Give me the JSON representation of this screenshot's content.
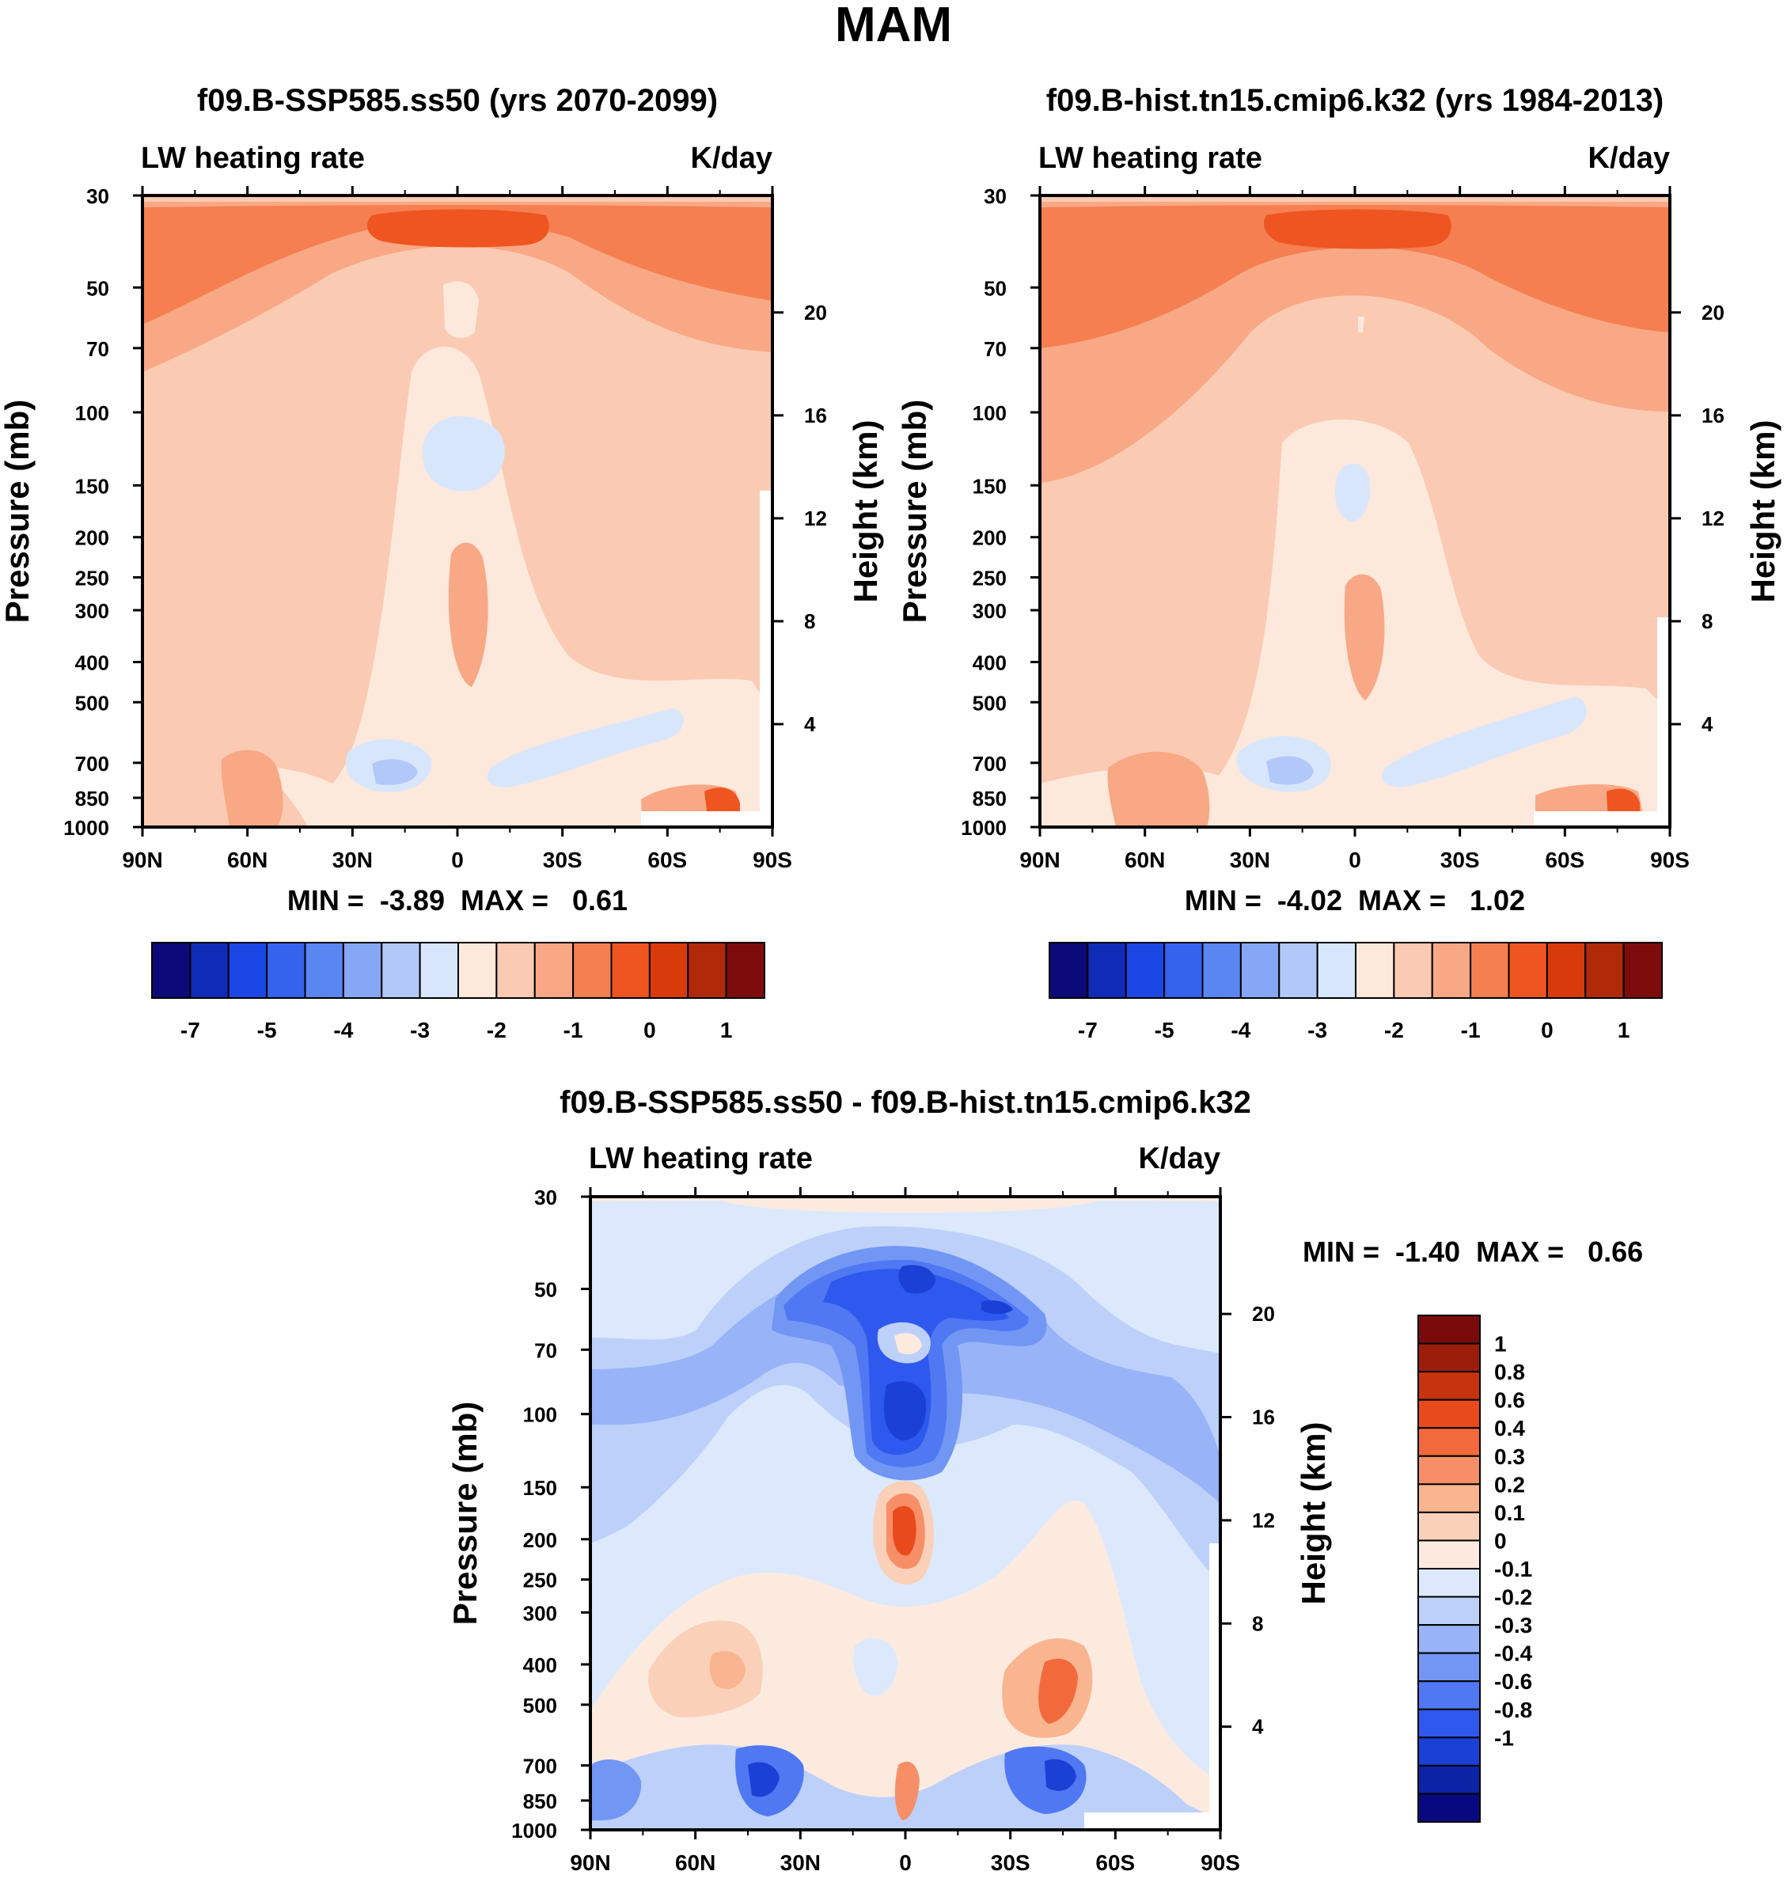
{
  "page": {
    "title": "MAM"
  },
  "colors": {
    "palette15": [
      "#0b0a78",
      "#0f2cb8",
      "#1a47e6",
      "#3563ee",
      "#5a86f2",
      "#86a7f5",
      "#b2c8f8",
      "#d8e6fb",
      "#fde8dc",
      "#fbcab2",
      "#f8a884",
      "#f57f51",
      "#ef5521",
      "#d93a0c",
      "#b02a0a",
      "#7f0c0c"
    ],
    "palette17": [
      "#080880",
      "#0d23a6",
      "#1a40d6",
      "#2f58ee",
      "#4f78f2",
      "#7296f4",
      "#98b3f7",
      "#bcd0fa",
      "#dce9fc",
      "#fdeadf",
      "#fbd0b8",
      "#f9b490",
      "#f68f68",
      "#f26a3c",
      "#e94a1c",
      "#c6330d",
      "#9b1d0a",
      "#7a0b0b"
    ]
  },
  "chart_data": [
    {
      "type": "contour",
      "title": "f09.B-SSP585.ss50 (yrs 2070-2099)",
      "variable": "LW heating rate",
      "units": "K/day",
      "ylabel": "Pressure (mb)",
      "ylabel_right": "Height (km)",
      "x_ticks": [
        "90N",
        "60N",
        "30N",
        "0",
        "30S",
        "60S",
        "90S"
      ],
      "pressure_ticks": [
        30,
        50,
        70,
        100,
        150,
        200,
        250,
        300,
        400,
        500,
        700,
        850,
        1000
      ],
      "pressure_ticks_text": [
        "30",
        "50",
        "70",
        "100",
        "150",
        "200",
        "250",
        "300",
        "400",
        "500",
        "700",
        "850",
        "1000"
      ],
      "height_ticks": [
        20,
        16,
        12,
        8,
        4
      ],
      "height_ticks_text": [
        "20",
        "16",
        "12",
        "8",
        "4"
      ],
      "ylim": [
        30,
        1000
      ],
      "stats": "MIN =  -3.89  MAX =   0.61",
      "colorbar_labels": [
        "-7",
        "-5",
        "-4",
        "-3",
        "-2",
        "-1",
        "0",
        "1"
      ]
    },
    {
      "type": "contour",
      "title": "f09.B-hist.tn15.cmip6.k32 (yrs 1984-2013)",
      "variable": "LW heating rate",
      "units": "K/day",
      "ylabel": "Pressure (mb)",
      "ylabel_right": "Height (km)",
      "x_ticks": [
        "90N",
        "60N",
        "30N",
        "0",
        "30S",
        "60S",
        "90S"
      ],
      "pressure_ticks": [
        30,
        50,
        70,
        100,
        150,
        200,
        250,
        300,
        400,
        500,
        700,
        850,
        1000
      ],
      "pressure_ticks_text": [
        "30",
        "50",
        "70",
        "100",
        "150",
        "200",
        "250",
        "300",
        "400",
        "500",
        "700",
        "850",
        "1000"
      ],
      "height_ticks": [
        20,
        16,
        12,
        8,
        4
      ],
      "height_ticks_text": [
        "20",
        "16",
        "12",
        "8",
        "4"
      ],
      "ylim": [
        30,
        1000
      ],
      "stats": "MIN =  -4.02  MAX =   1.02",
      "colorbar_labels": [
        "-7",
        "-5",
        "-4",
        "-3",
        "-2",
        "-1",
        "0",
        "1"
      ]
    },
    {
      "type": "contour",
      "title": "f09.B-SSP585.ss50 - f09.B-hist.tn15.cmip6.k32",
      "variable": "LW heating rate",
      "units": "K/day",
      "ylabel": "Pressure (mb)",
      "ylabel_right": "Height (km)",
      "x_ticks": [
        "90N",
        "60N",
        "30N",
        "0",
        "30S",
        "60S",
        "90S"
      ],
      "pressure_ticks": [
        30,
        50,
        70,
        100,
        150,
        200,
        250,
        300,
        400,
        500,
        700,
        850,
        1000
      ],
      "pressure_ticks_text": [
        "30",
        "50",
        "70",
        "100",
        "150",
        "200",
        "250",
        "300",
        "400",
        "500",
        "700",
        "850",
        "1000"
      ],
      "height_ticks": [
        20,
        16,
        12,
        8,
        4
      ],
      "height_ticks_text": [
        "20",
        "16",
        "12",
        "8",
        "4"
      ],
      "ylim": [
        30,
        1000
      ],
      "stats": "MIN =  -1.40  MAX =   0.66",
      "colorbar_labels": [
        "1",
        "0.8",
        "0.6",
        "0.4",
        "0.3",
        "0.2",
        "0.1",
        "0",
        "-0.1",
        "-0.2",
        "-0.3",
        "-0.4",
        "-0.6",
        "-0.8",
        "-1"
      ]
    }
  ]
}
